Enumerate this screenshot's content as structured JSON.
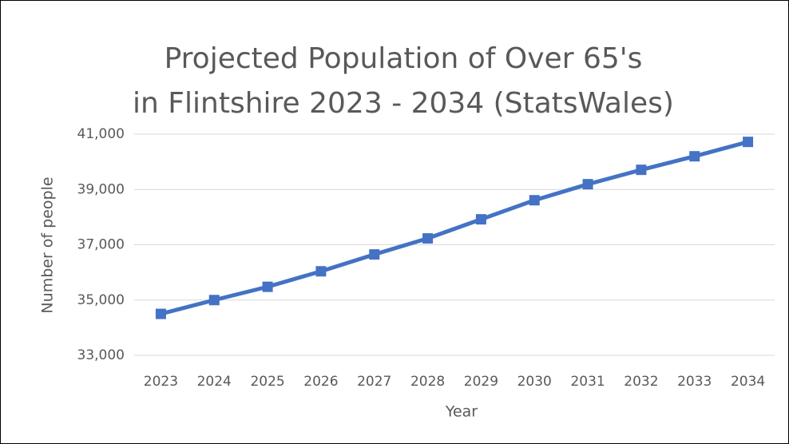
{
  "chart_data": {
    "type": "line",
    "title": [
      "Projected Population of Over 65's",
      "in Flintshire 2023 - 2034 (StatsWales)"
    ],
    "x_label": "Year",
    "y_label": "Number of people",
    "categories": [
      "2023",
      "2024",
      "2025",
      "2026",
      "2027",
      "2028",
      "2029",
      "2030",
      "2031",
      "2032",
      "2033",
      "2034"
    ],
    "series": [
      {
        "name": "Over 65's",
        "color": "#4472c4",
        "values": [
          34500,
          35000,
          35480,
          36040,
          36650,
          37230,
          37920,
          38610,
          39190,
          39710,
          40200,
          40720
        ]
      }
    ],
    "ylim": [
      33000,
      41000
    ],
    "yticks": [
      {
        "value": 33000,
        "label": "33,000"
      },
      {
        "value": 35000,
        "label": "35,000"
      },
      {
        "value": 37000,
        "label": "37,000"
      },
      {
        "value": 39000,
        "label": "39,000"
      },
      {
        "value": 41000,
        "label": "41,000"
      }
    ],
    "grid": true,
    "legend": false
  }
}
